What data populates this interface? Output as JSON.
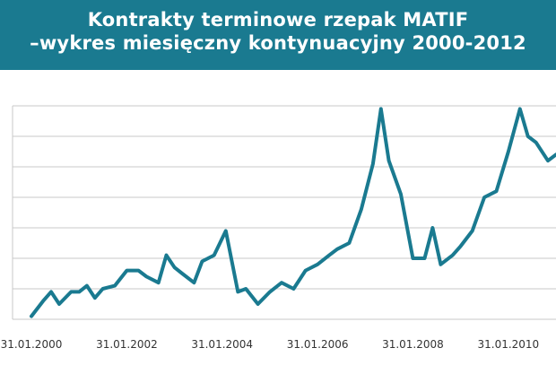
{
  "chart_data": {
    "type": "line",
    "title": "Kontrakty terminowe rzepak MATIF",
    "subtitle": "–wykres miesięczny kontynuacyjny 2000-2012",
    "xlabel": "",
    "ylabel": "",
    "x_tick_labels": [
      "31.01.2000",
      "31.01.2002",
      "31.01.2004",
      "31.01.2006",
      "31.01.2008",
      "31.01.2010"
    ],
    "x_range": [
      "31.01.2000",
      "31.01.2011"
    ],
    "ylim": [
      0,
      7
    ],
    "y_tick_labels_shown": false,
    "grid": true,
    "legend": "none",
    "line_color": "#1a7a90",
    "series": [
      {
        "points": [
          [
            "2000-01-31",
            0.1
          ],
          [
            "2000-04-30",
            0.6
          ],
          [
            "2000-06-30",
            0.9
          ],
          [
            "2000-08-31",
            0.5
          ],
          [
            "2000-11-30",
            0.9
          ],
          [
            "2001-01-31",
            0.9
          ],
          [
            "2001-03-31",
            1.1
          ],
          [
            "2001-05-31",
            0.7
          ],
          [
            "2001-07-31",
            1.0
          ],
          [
            "2001-10-31",
            1.1
          ],
          [
            "2002-01-31",
            1.6
          ],
          [
            "2002-04-30",
            1.6
          ],
          [
            "2002-06-30",
            1.4
          ],
          [
            "2002-09-30",
            1.2
          ],
          [
            "2002-11-30",
            2.1
          ],
          [
            "2003-01-31",
            1.7
          ],
          [
            "2003-03-31",
            1.5
          ],
          [
            "2003-06-30",
            1.2
          ],
          [
            "2003-08-31",
            1.9
          ],
          [
            "2003-11-30",
            2.1
          ],
          [
            "2004-02-28",
            2.9
          ],
          [
            "2004-05-31",
            0.9
          ],
          [
            "2004-07-31",
            1.0
          ],
          [
            "2004-10-31",
            0.5
          ],
          [
            "2005-01-31",
            0.9
          ],
          [
            "2005-04-30",
            1.2
          ],
          [
            "2005-07-31",
            1.0
          ],
          [
            "2005-10-31",
            1.6
          ],
          [
            "2006-01-31",
            1.8
          ],
          [
            "2006-04-30",
            2.1
          ],
          [
            "2006-06-30",
            2.3
          ],
          [
            "2006-09-30",
            2.5
          ],
          [
            "2006-12-31",
            3.6
          ],
          [
            "2007-03-31",
            5.1
          ],
          [
            "2007-05-31",
            6.9
          ],
          [
            "2007-07-31",
            5.2
          ],
          [
            "2007-10-31",
            4.1
          ],
          [
            "2008-01-31",
            2.0
          ],
          [
            "2008-04-30",
            2.0
          ],
          [
            "2008-06-30",
            3.0
          ],
          [
            "2008-08-31",
            1.8
          ],
          [
            "2008-11-30",
            2.1
          ],
          [
            "2009-01-31",
            2.4
          ],
          [
            "2009-04-30",
            2.9
          ],
          [
            "2009-07-31",
            4.0
          ],
          [
            "2009-10-31",
            4.2
          ],
          [
            "2010-01-31",
            5.5
          ],
          [
            "2010-04-30",
            6.9
          ],
          [
            "2010-06-30",
            6.0
          ],
          [
            "2010-08-31",
            5.8
          ],
          [
            "2010-11-30",
            5.2
          ],
          [
            "2011-01-31",
            5.4
          ]
        ]
      }
    ]
  }
}
